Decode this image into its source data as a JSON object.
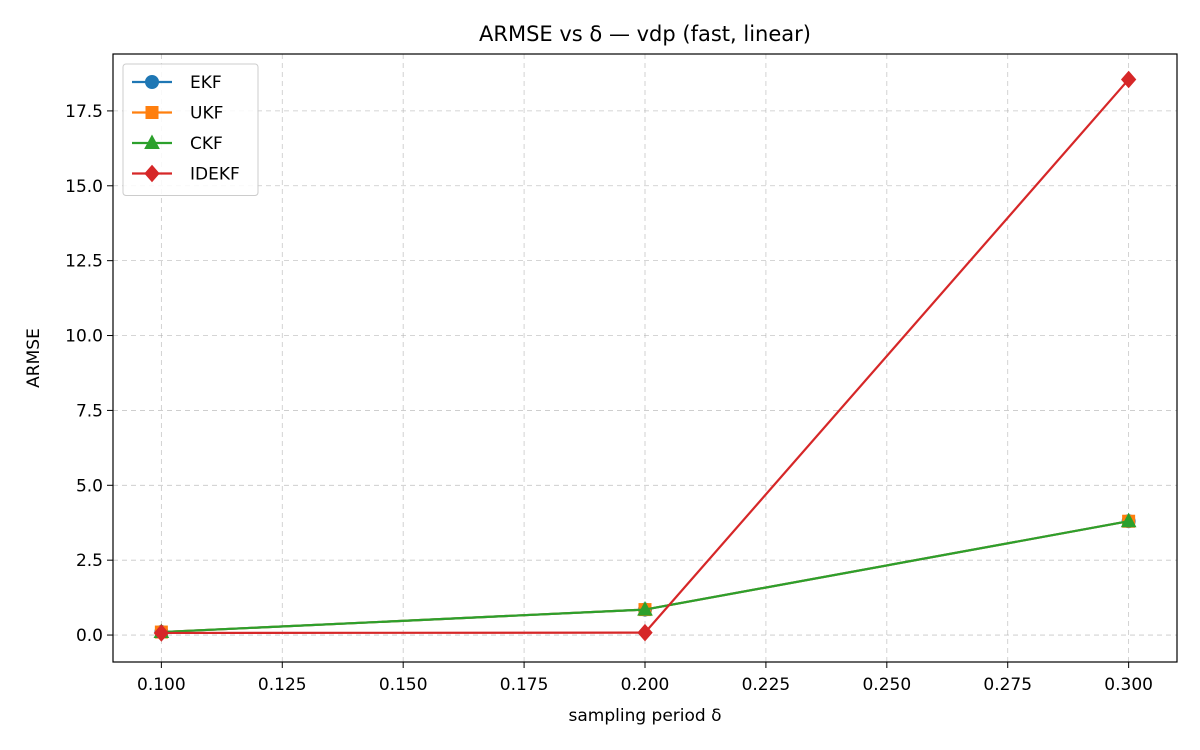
{
  "chart_data": {
    "type": "line",
    "title": "ARMSE vs δ — vdp (fast, linear)",
    "xlabel": "sampling period δ",
    "ylabel": "ARMSE",
    "xlim": [
      0.09,
      0.31
    ],
    "ylim": [
      -0.9,
      19.4
    ],
    "xticks": [
      "0.100",
      "0.125",
      "0.150",
      "0.175",
      "0.200",
      "0.225",
      "0.250",
      "0.275",
      "0.300"
    ],
    "yticks": [
      "0.0",
      "2.5",
      "5.0",
      "7.5",
      "10.0",
      "12.5",
      "15.0",
      "17.5"
    ],
    "grid": true,
    "legend_position": "top-left",
    "x": [
      0.1,
      0.2,
      0.3
    ],
    "series": [
      {
        "name": "EKF",
        "values": [
          0.1,
          0.85,
          3.8
        ],
        "color": "#1f77b4",
        "marker": "circle"
      },
      {
        "name": "UKF",
        "values": [
          0.1,
          0.85,
          3.8
        ],
        "color": "#ff7f0e",
        "marker": "square"
      },
      {
        "name": "CKF",
        "values": [
          0.1,
          0.85,
          3.8
        ],
        "color": "#2ca02c",
        "marker": "triangle"
      },
      {
        "name": "IDEKF",
        "values": [
          0.07,
          0.08,
          18.55
        ],
        "color": "#d62728",
        "marker": "diamond"
      }
    ]
  }
}
